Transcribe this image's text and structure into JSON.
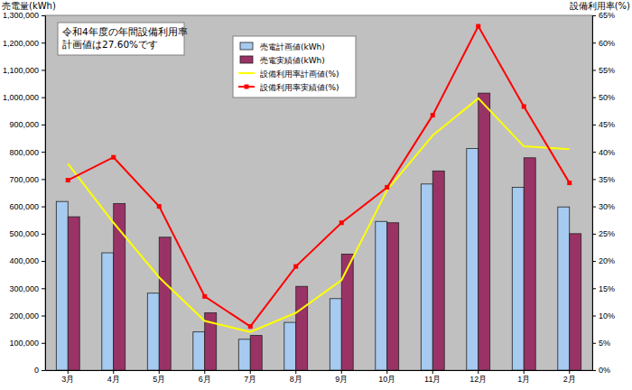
{
  "chart_data": {
    "type": "bar",
    "y_label": "売電量(kWh)",
    "y2_label": "設備利用率(%)",
    "annotations": [
      "令和4年度の年間設備利用率",
      "計画値は27.60%です"
    ],
    "categories": [
      "3月",
      "4月",
      "5月",
      "6月",
      "7月",
      "8月",
      "9月",
      "10月",
      "11月",
      "12月",
      "1月",
      "2月"
    ],
    "series": [
      {
        "name": "売電計画値(kWh)",
        "type": "bar",
        "color": "#a6caf0",
        "values": [
          618000,
          430000,
          282000,
          140000,
          113000,
          175000,
          262000,
          545000,
          682000,
          812000,
          670000,
          598000
        ]
      },
      {
        "name": "売電実績値(kWh)",
        "type": "bar",
        "color": "#993366",
        "values": [
          562000,
          610000,
          487000,
          210000,
          127000,
          307000,
          425000,
          540000,
          730000,
          1015000,
          778000,
          500000
        ]
      },
      {
        "name": "設備利用率計画値(%)",
        "type": "line",
        "axis": "y2",
        "color": "#ffff00",
        "values": [
          37.8,
          27.0,
          17.0,
          9.0,
          7.0,
          10.5,
          16.5,
          33.0,
          43.0,
          49.8,
          41.0,
          40.5
        ]
      },
      {
        "name": "設備利用率実績値(%)",
        "type": "line",
        "axis": "y2",
        "color": "#ff0000",
        "marker": "square",
        "values": [
          34.8,
          39.0,
          30.0,
          13.5,
          8.0,
          19.0,
          27.0,
          33.5,
          46.7,
          63.0,
          48.3,
          34.3
        ]
      }
    ],
    "ylim": [
      0,
      1300000
    ],
    "yticks": [
      0,
      {
        "value": 100000,
        "label": "100,000"
      },
      {
        "value": 200000,
        "label": "200,000"
      },
      {
        "value": 300000,
        "label": "300,000"
      },
      {
        "value": 400000,
        "label": "400,000"
      },
      {
        "value": 500000,
        "label": "500,000"
      },
      {
        "value": 600000,
        "label": "600,000"
      },
      {
        "value": 700000,
        "label": "700,000"
      },
      {
        "value": 800000,
        "label": "800,000"
      },
      {
        "value": 900000,
        "label": "900,000"
      },
      {
        "value": 1000000,
        "label": "1,000,000"
      },
      {
        "value": 1100000,
        "label": "1,100,000"
      },
      {
        "value": 1200000,
        "label": "1,200,000"
      },
      {
        "value": 1300000,
        "label": "1,300,000"
      }
    ],
    "y2lim": [
      0,
      65
    ],
    "y2ticks": [
      {
        "value": 0,
        "label": "0%"
      },
      {
        "value": 5,
        "label": "5%"
      },
      {
        "value": 10,
        "label": "10%"
      },
      {
        "value": 15,
        "label": "15%"
      },
      {
        "value": 20,
        "label": "20%"
      },
      {
        "value": 25,
        "label": "25%"
      },
      {
        "value": 30,
        "label": "30%"
      },
      {
        "value": 35,
        "label": "35%"
      },
      {
        "value": 40,
        "label": "40%"
      },
      {
        "value": 45,
        "label": "45%"
      },
      {
        "value": 50,
        "label": "50%"
      },
      {
        "value": 55,
        "label": "55%"
      },
      {
        "value": 60,
        "label": "60%"
      },
      {
        "value": 65,
        "label": "65%"
      }
    ],
    "grid": false,
    "legend": "top"
  }
}
